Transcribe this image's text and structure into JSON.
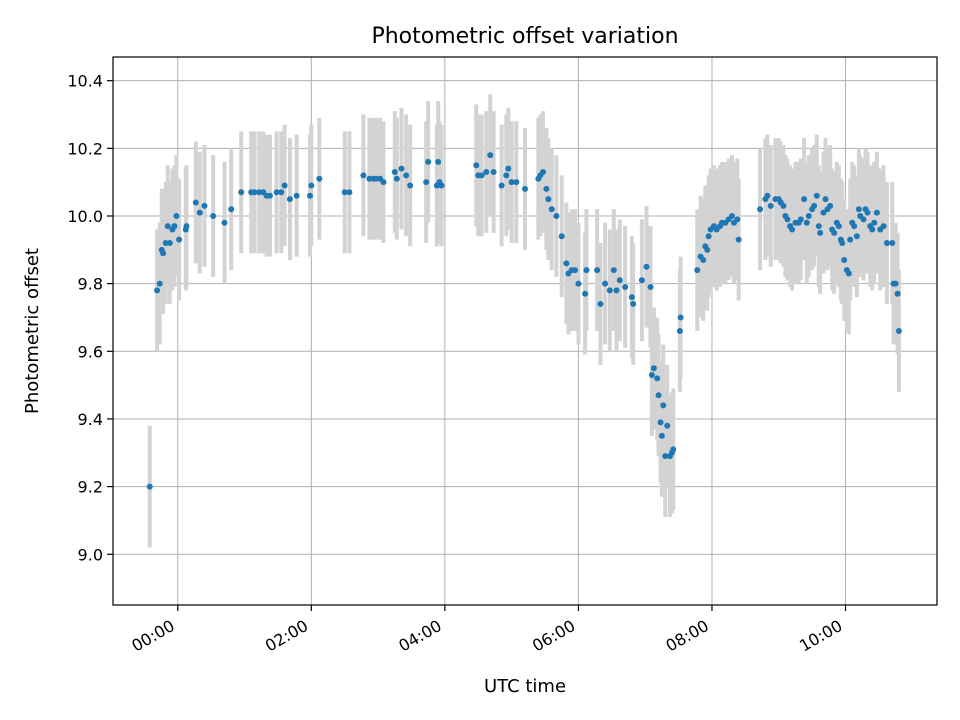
{
  "chart_data": {
    "type": "scatter",
    "title": "Photometric offset variation",
    "xlabel": "UTC time",
    "ylabel": "Photometric offset",
    "x_unit": "hours",
    "xlim": [
      -0.97,
      11.37
    ],
    "ylim": [
      8.85,
      10.47
    ],
    "x_ticks": [
      {
        "value": 0,
        "label": "00:00"
      },
      {
        "value": 2,
        "label": "02:00"
      },
      {
        "value": 4,
        "label": "04:00"
      },
      {
        "value": 6,
        "label": "06:00"
      },
      {
        "value": 8,
        "label": "08:00"
      },
      {
        "value": 10,
        "label": "10:00"
      }
    ],
    "y_ticks": [
      {
        "value": 9.0,
        "label": "9.0"
      },
      {
        "value": 9.2,
        "label": "9.2"
      },
      {
        "value": 9.4,
        "label": "9.4"
      },
      {
        "value": 9.6,
        "label": "9.6"
      },
      {
        "value": 9.8,
        "label": "9.8"
      },
      {
        "value": 10.0,
        "label": "10.0"
      },
      {
        "value": 10.2,
        "label": "10.2"
      },
      {
        "value": 10.4,
        "label": "10.4"
      }
    ],
    "grid": true,
    "colors": {
      "point": "#1f77b4",
      "errorbar": "#d3d3d3"
    },
    "series": [
      {
        "points": [
          [
            -0.42,
            9.2,
            0.18
          ],
          [
            -0.31,
            9.78,
            0.18
          ],
          [
            -0.27,
            9.8,
            0.18
          ],
          [
            -0.24,
            9.9,
            0.18
          ],
          [
            -0.22,
            9.89,
            0.18
          ],
          [
            -0.18,
            9.92,
            0.18
          ],
          [
            -0.15,
            9.97,
            0.18
          ],
          [
            -0.12,
            9.92,
            0.18
          ],
          [
            -0.08,
            9.96,
            0.18
          ],
          [
            -0.05,
            9.97,
            0.18
          ],
          [
            -0.02,
            10.0,
            0.18
          ],
          [
            0.02,
            9.93,
            0.18
          ],
          [
            0.12,
            9.96,
            0.18
          ],
          [
            0.13,
            9.97,
            0.18
          ],
          [
            0.27,
            10.04,
            0.18
          ],
          [
            0.33,
            10.01,
            0.18
          ],
          [
            0.4,
            10.03,
            0.18
          ],
          [
            0.53,
            10.0,
            0.18
          ],
          [
            0.7,
            9.98,
            0.18
          ],
          [
            0.8,
            10.02,
            0.18
          ],
          [
            0.95,
            10.07,
            0.18
          ],
          [
            1.1,
            10.07,
            0.18
          ],
          [
            1.15,
            10.07,
            0.18
          ],
          [
            1.22,
            10.07,
            0.18
          ],
          [
            1.28,
            10.07,
            0.18
          ],
          [
            1.33,
            10.06,
            0.18
          ],
          [
            1.38,
            10.06,
            0.18
          ],
          [
            1.48,
            10.07,
            0.18
          ],
          [
            1.55,
            10.07,
            0.18
          ],
          [
            1.6,
            10.09,
            0.18
          ],
          [
            1.68,
            10.05,
            0.18
          ],
          [
            1.78,
            10.06,
            0.18
          ],
          [
            1.98,
            10.06,
            0.18
          ],
          [
            2.0,
            10.09,
            0.18
          ],
          [
            2.12,
            10.11,
            0.18
          ],
          [
            2.5,
            10.07,
            0.18
          ],
          [
            2.57,
            10.07,
            0.18
          ],
          [
            2.78,
            10.12,
            0.18
          ],
          [
            2.87,
            10.11,
            0.18
          ],
          [
            2.93,
            10.11,
            0.18
          ],
          [
            2.97,
            10.11,
            0.18
          ],
          [
            3.03,
            10.11,
            0.18
          ],
          [
            3.08,
            10.1,
            0.18
          ],
          [
            3.25,
            10.13,
            0.18
          ],
          [
            3.28,
            10.11,
            0.18
          ],
          [
            3.35,
            10.14,
            0.18
          ],
          [
            3.42,
            10.12,
            0.18
          ],
          [
            3.48,
            10.09,
            0.18
          ],
          [
            3.72,
            10.1,
            0.18
          ],
          [
            3.75,
            10.16,
            0.18
          ],
          [
            3.88,
            10.09,
            0.18
          ],
          [
            3.9,
            10.16,
            0.18
          ],
          [
            3.92,
            10.1,
            0.18
          ],
          [
            3.95,
            10.09,
            0.18
          ],
          [
            4.47,
            10.15,
            0.18
          ],
          [
            4.5,
            10.12,
            0.18
          ],
          [
            4.55,
            10.12,
            0.18
          ],
          [
            4.62,
            10.13,
            0.18
          ],
          [
            4.68,
            10.18,
            0.18
          ],
          [
            4.73,
            10.13,
            0.18
          ],
          [
            4.85,
            10.09,
            0.18
          ],
          [
            4.92,
            10.12,
            0.18
          ],
          [
            4.95,
            10.14,
            0.18
          ],
          [
            5.0,
            10.1,
            0.18
          ],
          [
            5.07,
            10.1,
            0.18
          ],
          [
            5.2,
            10.08,
            0.18
          ],
          [
            5.4,
            10.11,
            0.18
          ],
          [
            5.43,
            10.12,
            0.18
          ],
          [
            5.47,
            10.13,
            0.18
          ],
          [
            5.52,
            10.08,
            0.18
          ],
          [
            5.55,
            10.05,
            0.18
          ],
          [
            5.6,
            10.02,
            0.18
          ],
          [
            5.67,
            10.0,
            0.18
          ],
          [
            5.75,
            9.94,
            0.18
          ],
          [
            5.82,
            9.86,
            0.18
          ],
          [
            5.85,
            9.83,
            0.18
          ],
          [
            5.9,
            9.84,
            0.18
          ],
          [
            5.95,
            9.84,
            0.18
          ],
          [
            6.0,
            9.8,
            0.18
          ],
          [
            6.1,
            9.77,
            0.18
          ],
          [
            6.12,
            9.84,
            0.18
          ],
          [
            6.28,
            9.84,
            0.18
          ],
          [
            6.33,
            9.74,
            0.18
          ],
          [
            6.4,
            9.8,
            0.18
          ],
          [
            6.47,
            9.78,
            0.18
          ],
          [
            6.53,
            9.84,
            0.18
          ],
          [
            6.57,
            9.78,
            0.18
          ],
          [
            6.62,
            9.81,
            0.18
          ],
          [
            6.7,
            9.79,
            0.18
          ],
          [
            6.8,
            9.76,
            0.18
          ],
          [
            6.82,
            9.74,
            0.18
          ],
          [
            6.95,
            9.81,
            0.18
          ],
          [
            7.02,
            9.85,
            0.18
          ],
          [
            7.08,
            9.79,
            0.18
          ],
          [
            7.1,
            9.53,
            0.18
          ],
          [
            7.13,
            9.55,
            0.18
          ],
          [
            7.18,
            9.52,
            0.18
          ],
          [
            7.2,
            9.47,
            0.18
          ],
          [
            7.23,
            9.39,
            0.18
          ],
          [
            7.25,
            9.35,
            0.18
          ],
          [
            7.27,
            9.44,
            0.18
          ],
          [
            7.3,
            9.29,
            0.18
          ],
          [
            7.33,
            9.38,
            0.18
          ],
          [
            7.37,
            9.29,
            0.18
          ],
          [
            7.4,
            9.3,
            0.18
          ],
          [
            7.42,
            9.31,
            0.18
          ],
          [
            7.52,
            9.66,
            0.18
          ],
          [
            7.53,
            9.7,
            0.18
          ],
          [
            7.78,
            9.84,
            0.18
          ],
          [
            7.83,
            9.88,
            0.18
          ],
          [
            7.87,
            9.87,
            0.18
          ],
          [
            7.9,
            9.91,
            0.18
          ],
          [
            7.93,
            9.9,
            0.18
          ],
          [
            7.95,
            9.94,
            0.18
          ],
          [
            7.98,
            9.96,
            0.18
          ],
          [
            8.03,
            9.97,
            0.18
          ],
          [
            8.07,
            9.96,
            0.18
          ],
          [
            8.12,
            9.97,
            0.18
          ],
          [
            8.15,
            9.98,
            0.18
          ],
          [
            8.2,
            9.98,
            0.18
          ],
          [
            8.25,
            9.99,
            0.18
          ],
          [
            8.3,
            10.0,
            0.18
          ],
          [
            8.33,
            9.98,
            0.18
          ],
          [
            8.38,
            9.99,
            0.18
          ],
          [
            8.4,
            9.93,
            0.18
          ],
          [
            8.72,
            10.02,
            0.18
          ],
          [
            8.8,
            10.05,
            0.18
          ],
          [
            8.83,
            10.06,
            0.18
          ],
          [
            8.88,
            10.03,
            0.18
          ],
          [
            8.95,
            10.05,
            0.18
          ],
          [
            9.0,
            10.05,
            0.18
          ],
          [
            9.03,
            10.04,
            0.18
          ],
          [
            9.07,
            10.03,
            0.18
          ],
          [
            9.1,
            10.0,
            0.18
          ],
          [
            9.13,
            9.99,
            0.18
          ],
          [
            9.17,
            9.97,
            0.18
          ],
          [
            9.2,
            9.96,
            0.18
          ],
          [
            9.25,
            9.98,
            0.18
          ],
          [
            9.3,
            9.98,
            0.18
          ],
          [
            9.33,
            9.99,
            0.18
          ],
          [
            9.38,
            10.05,
            0.18
          ],
          [
            9.42,
            9.98,
            0.18
          ],
          [
            9.45,
            10.0,
            0.18
          ],
          [
            9.5,
            10.02,
            0.18
          ],
          [
            9.53,
            10.03,
            0.18
          ],
          [
            9.57,
            10.06,
            0.18
          ],
          [
            9.6,
            9.97,
            0.18
          ],
          [
            9.62,
            9.95,
            0.18
          ],
          [
            9.67,
            10.01,
            0.18
          ],
          [
            9.7,
            10.05,
            0.18
          ],
          [
            9.73,
            10.02,
            0.18
          ],
          [
            9.77,
            10.03,
            0.18
          ],
          [
            9.8,
            9.96,
            0.18
          ],
          [
            9.83,
            9.95,
            0.18
          ],
          [
            9.87,
            9.98,
            0.18
          ],
          [
            9.9,
            9.97,
            0.18
          ],
          [
            9.93,
            9.93,
            0.18
          ],
          [
            9.95,
            9.92,
            0.18
          ],
          [
            9.98,
            9.87,
            0.18
          ],
          [
            10.02,
            9.84,
            0.18
          ],
          [
            10.05,
            9.83,
            0.18
          ],
          [
            10.07,
            9.93,
            0.18
          ],
          [
            10.1,
            9.98,
            0.18
          ],
          [
            10.13,
            9.97,
            0.18
          ],
          [
            10.17,
            9.94,
            0.18
          ],
          [
            10.2,
            10.02,
            0.18
          ],
          [
            10.22,
            10.0,
            0.18
          ],
          [
            10.27,
            9.99,
            0.18
          ],
          [
            10.3,
            10.02,
            0.18
          ],
          [
            10.33,
            10.01,
            0.18
          ],
          [
            10.37,
            9.97,
            0.18
          ],
          [
            10.4,
            9.96,
            0.18
          ],
          [
            10.43,
            9.98,
            0.18
          ],
          [
            10.47,
            10.01,
            0.18
          ],
          [
            10.52,
            9.96,
            0.18
          ],
          [
            10.57,
            9.97,
            0.18
          ],
          [
            10.62,
            9.92,
            0.18
          ],
          [
            10.7,
            9.92,
            0.18
          ],
          [
            10.72,
            9.8,
            0.18
          ],
          [
            10.75,
            9.8,
            0.18
          ],
          [
            10.78,
            9.77,
            0.18
          ],
          [
            10.8,
            9.66,
            0.18
          ]
        ]
      }
    ]
  }
}
